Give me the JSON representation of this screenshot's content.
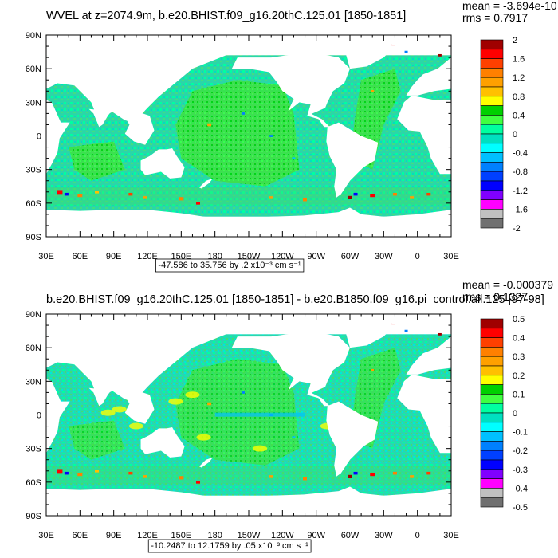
{
  "chart_data": [
    {
      "type": "heatmap",
      "title": "WVEL at z=2074.9m, b.e20.BHIST.f09_g16.20thC.125.01 [1850-1851]",
      "stats": {
        "mean": "mean = -3.694e-10",
        "rms": "rms = 0.7917"
      },
      "xticks": [
        "30E",
        "60E",
        "90E",
        "120E",
        "150E",
        "180",
        "150W",
        "120W",
        "90W",
        "60W",
        "30W",
        "0",
        "30E"
      ],
      "yticks": [
        "90N",
        "60N",
        "30N",
        "0",
        "30S",
        "60S",
        "90S"
      ],
      "xlim": [
        30,
        390
      ],
      "ylim": [
        -90,
        90
      ],
      "colorbar": {
        "labels": [
          "2",
          "1.6",
          "1.2",
          "0.8",
          "0.4",
          "0",
          "-0.4",
          "-0.8",
          "-1.2",
          "-1.6",
          "-2"
        ],
        "colors": [
          "#a00000",
          "#ff0000",
          "#ff4000",
          "#ff8000",
          "#ffa000",
          "#ffc000",
          "#ffff00",
          "#00d000",
          "#40ff40",
          "#00ffa0",
          "#00e0c0",
          "#00ffff",
          "#00c0ff",
          "#0080ff",
          "#0040ff",
          "#0000ff",
          "#8000ff",
          "#ff00ff",
          "#c0c0c0",
          "#707070"
        ]
      },
      "range_label": "-47.586 to 35.756 by .2 x10⁻³ cm s⁻¹"
    },
    {
      "type": "heatmap",
      "title": "b.e20.BHIST.f09_g16.20thC.125.01 [1850-1851] - b.e20.B1850.f09_g16.pi_control.all.125 [97-98]",
      "stats": {
        "mean": "mean = -0.000379",
        "rms": "rms = 0.1327"
      },
      "xticks": [
        "30E",
        "60E",
        "90E",
        "120E",
        "150E",
        "180",
        "150W",
        "120W",
        "90W",
        "60W",
        "30W",
        "0",
        "30E"
      ],
      "yticks": [
        "90N",
        "60N",
        "30N",
        "0",
        "30S",
        "60S",
        "90S"
      ],
      "xlim": [
        30,
        390
      ],
      "ylim": [
        -90,
        90
      ],
      "colorbar": {
        "labels": [
          "0.5",
          "0.4",
          "0.3",
          "0.2",
          "0.1",
          "0",
          "-0.1",
          "-0.2",
          "-0.3",
          "-0.4",
          "-0.5"
        ],
        "colors": [
          "#a00000",
          "#ff0000",
          "#ff4000",
          "#ff8000",
          "#ffa000",
          "#ffc000",
          "#ffff00",
          "#00d000",
          "#40ff40",
          "#00ffa0",
          "#00e0c0",
          "#00ffff",
          "#00c0ff",
          "#0080ff",
          "#0040ff",
          "#0000ff",
          "#8000ff",
          "#ff00ff",
          "#c0c0c0",
          "#707070"
        ]
      },
      "range_label": "-10.2487 to 12.1759 by .05 x10⁻³ cm s⁻¹"
    }
  ]
}
